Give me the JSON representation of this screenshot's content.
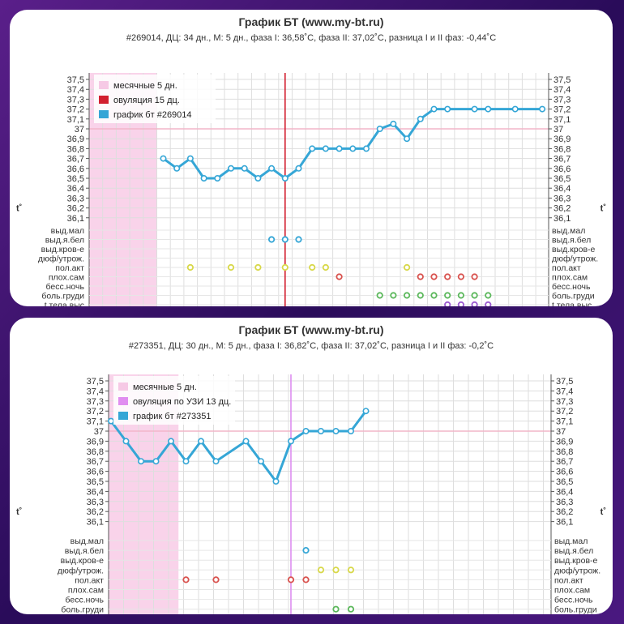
{
  "chart_data": [
    {
      "type": "line",
      "title": "График БТ (www.my-bt.ru)",
      "subtitle": "#269014, ДЦ: 34 дн., М: 5 дн., фаза I: 36,58˚C, фаза II: 37,02˚C, разница I и II фаз: -0,44˚C",
      "ylabel": "t˚",
      "y_ticks": [
        "37,5",
        "37,4",
        "37,3",
        "37,2",
        "37,1",
        "37",
        "36,9",
        "36,8",
        "36,7",
        "36,6",
        "36,5",
        "36,4",
        "36,3",
        "36,2",
        "36,1"
      ],
      "ylim": [
        36.1,
        37.5
      ],
      "reference_y": 37.0,
      "period_days": 5,
      "ovulation_day": 15,
      "colors": {
        "period": "#f9d3ea",
        "ovulation_line": "#d21f2f",
        "series": "#35a6d6"
      },
      "legend": [
        {
          "label": "месячные 5 дн.",
          "color": "#f6c9e5"
        },
        {
          "label": "овуляция 15 дц.",
          "color": "#d21f2f"
        },
        {
          "label": "график бт #269014",
          "color": "#35a6d6"
        }
      ],
      "series": [
        {
          "name": "график бт #269014",
          "x": [
            6,
            7,
            8,
            9,
            10,
            11,
            12,
            13,
            14,
            15,
            16,
            17,
            18,
            19,
            20,
            21,
            22,
            23,
            24,
            25,
            26,
            27,
            28,
            29,
            30,
            31,
            32,
            33,
            34
          ],
          "y": [
            36.7,
            36.6,
            36.7,
            36.5,
            36.5,
            36.6,
            36.6,
            36.5,
            36.6,
            36.5,
            36.6,
            36.8,
            36.8,
            36.8,
            36.8,
            36.8,
            37.0,
            37.05,
            36.9,
            37.1,
            37.2,
            37.2,
            null,
            37.2,
            37.2,
            null,
            37.2,
            null,
            37.2
          ]
        }
      ],
      "categories": [
        "выд.мал",
        "выд.я.бел",
        "выд.кров-е",
        "дюф/утрож.",
        "пол.акт",
        "плох.сам",
        "бесс.ночь",
        "боль.груди",
        "t тела.выс"
      ],
      "markers": [
        {
          "row": 1,
          "days": [
            14,
            15,
            16
          ],
          "color": "#35a6d6"
        },
        {
          "row": 4,
          "days": [
            8,
            11,
            13,
            15,
            17,
            18,
            24
          ],
          "color": "#d8d84a"
        },
        {
          "row": 5,
          "days": [
            19,
            25,
            26,
            27,
            28,
            29
          ],
          "color": "#d9534f"
        },
        {
          "row": 7,
          "days": [
            22,
            23,
            24,
            25,
            26,
            27,
            28,
            29,
            30
          ],
          "color": "#5cb85c"
        },
        {
          "row": 8,
          "days": [
            27,
            28,
            29,
            30
          ],
          "color": "#9b59d0"
        }
      ]
    },
    {
      "type": "line",
      "title": "График БТ (www.my-bt.ru)",
      "subtitle": "#273351, ДЦ: 30 дн., М: 5 дн., фаза I: 36,82˚C, фаза II: 37,02˚C, разница I и II фаз: -0,2˚C",
      "ylabel": "t˚",
      "y_ticks": [
        "37,5",
        "37,4",
        "37,3",
        "37,2",
        "37,1",
        "37",
        "36,9",
        "36,8",
        "36,7",
        "36,6",
        "36,5",
        "36,4",
        "36,3",
        "36,2",
        "36,1"
      ],
      "ylim": [
        36.1,
        37.5
      ],
      "reference_y": 37.0,
      "period_days": 5,
      "ovulation_day": 13,
      "colors": {
        "period": "#f9d3ea",
        "ovulation_line": "#dd8ef0",
        "series": "#35a6d6"
      },
      "legend": [
        {
          "label": "месячные 5 дн.",
          "color": "#f6c9e5"
        },
        {
          "label": "овуляция по УЗИ 13 дц.",
          "color": "#e08ef0"
        },
        {
          "label": "график бт #273351",
          "color": "#35a6d6"
        }
      ],
      "series": [
        {
          "name": "график бт #273351",
          "x": [
            1,
            2,
            3,
            4,
            5,
            6,
            7,
            8,
            10,
            11,
            12,
            13,
            14,
            15,
            16,
            17,
            18,
            19
          ],
          "y": [
            37.1,
            36.9,
            36.7,
            36.7,
            36.9,
            36.7,
            36.9,
            36.7,
            36.9,
            36.7,
            36.5,
            36.9,
            37.0,
            37.0,
            37.0,
            37.0,
            37.2,
            null
          ]
        }
      ],
      "categories": [
        "выд.мал",
        "выд.я.бел",
        "выд.кров-е",
        "дюф/утрож.",
        "пол.акт",
        "плох.сам",
        "бесс.ночь",
        "боль.груди"
      ],
      "markers": [
        {
          "row": 1,
          "days": [
            14
          ],
          "color": "#35a6d6"
        },
        {
          "row": 3,
          "days": [
            15,
            16,
            17
          ],
          "color": "#d8d84a"
        },
        {
          "row": 4,
          "days": [
            6,
            8,
            13,
            14
          ],
          "color": "#d9534f"
        },
        {
          "row": 7,
          "days": [
            16,
            17
          ],
          "color": "#5cb85c"
        }
      ]
    }
  ]
}
